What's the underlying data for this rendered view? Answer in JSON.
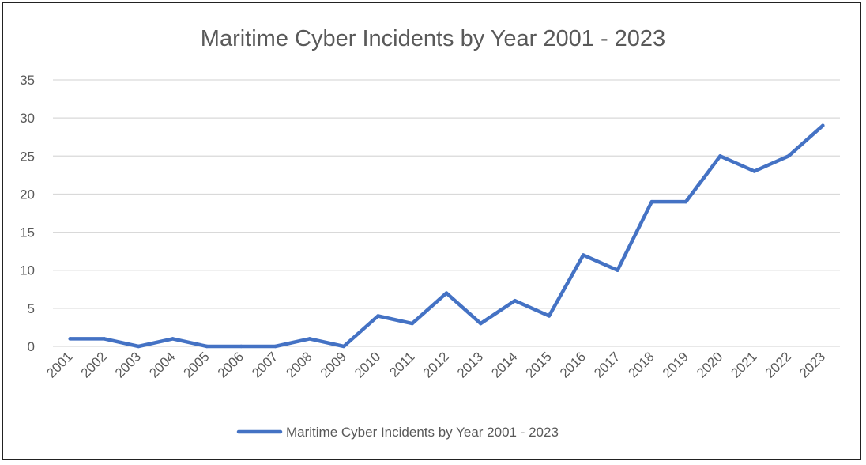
{
  "chart_data": {
    "type": "line",
    "title": "Maritime Cyber Incidents by Year 2001 - 2023",
    "xlabel": "",
    "ylabel": "",
    "categories": [
      "2001",
      "2002",
      "2003",
      "2004",
      "2005",
      "2006",
      "2007",
      "2008",
      "2009",
      "2010",
      "2011",
      "2012",
      "2013",
      "2014",
      "2015",
      "2016",
      "2017",
      "2018",
      "2019",
      "2020",
      "2021",
      "2022",
      "2023"
    ],
    "series": [
      {
        "name": "Maritime Cyber Incidents by Year 2001 - 2023",
        "values": [
          1,
          1,
          0,
          1,
          0,
          0,
          0,
          1,
          0,
          4,
          3,
          7,
          3,
          6,
          4,
          12,
          10,
          19,
          19,
          25,
          23,
          25,
          29
        ],
        "color": "#4472c4"
      }
    ],
    "ylim": [
      0,
      35
    ],
    "yticks": [
      0,
      5,
      10,
      15,
      20,
      25,
      30,
      35
    ],
    "grid": true,
    "legend_position": "bottom"
  }
}
